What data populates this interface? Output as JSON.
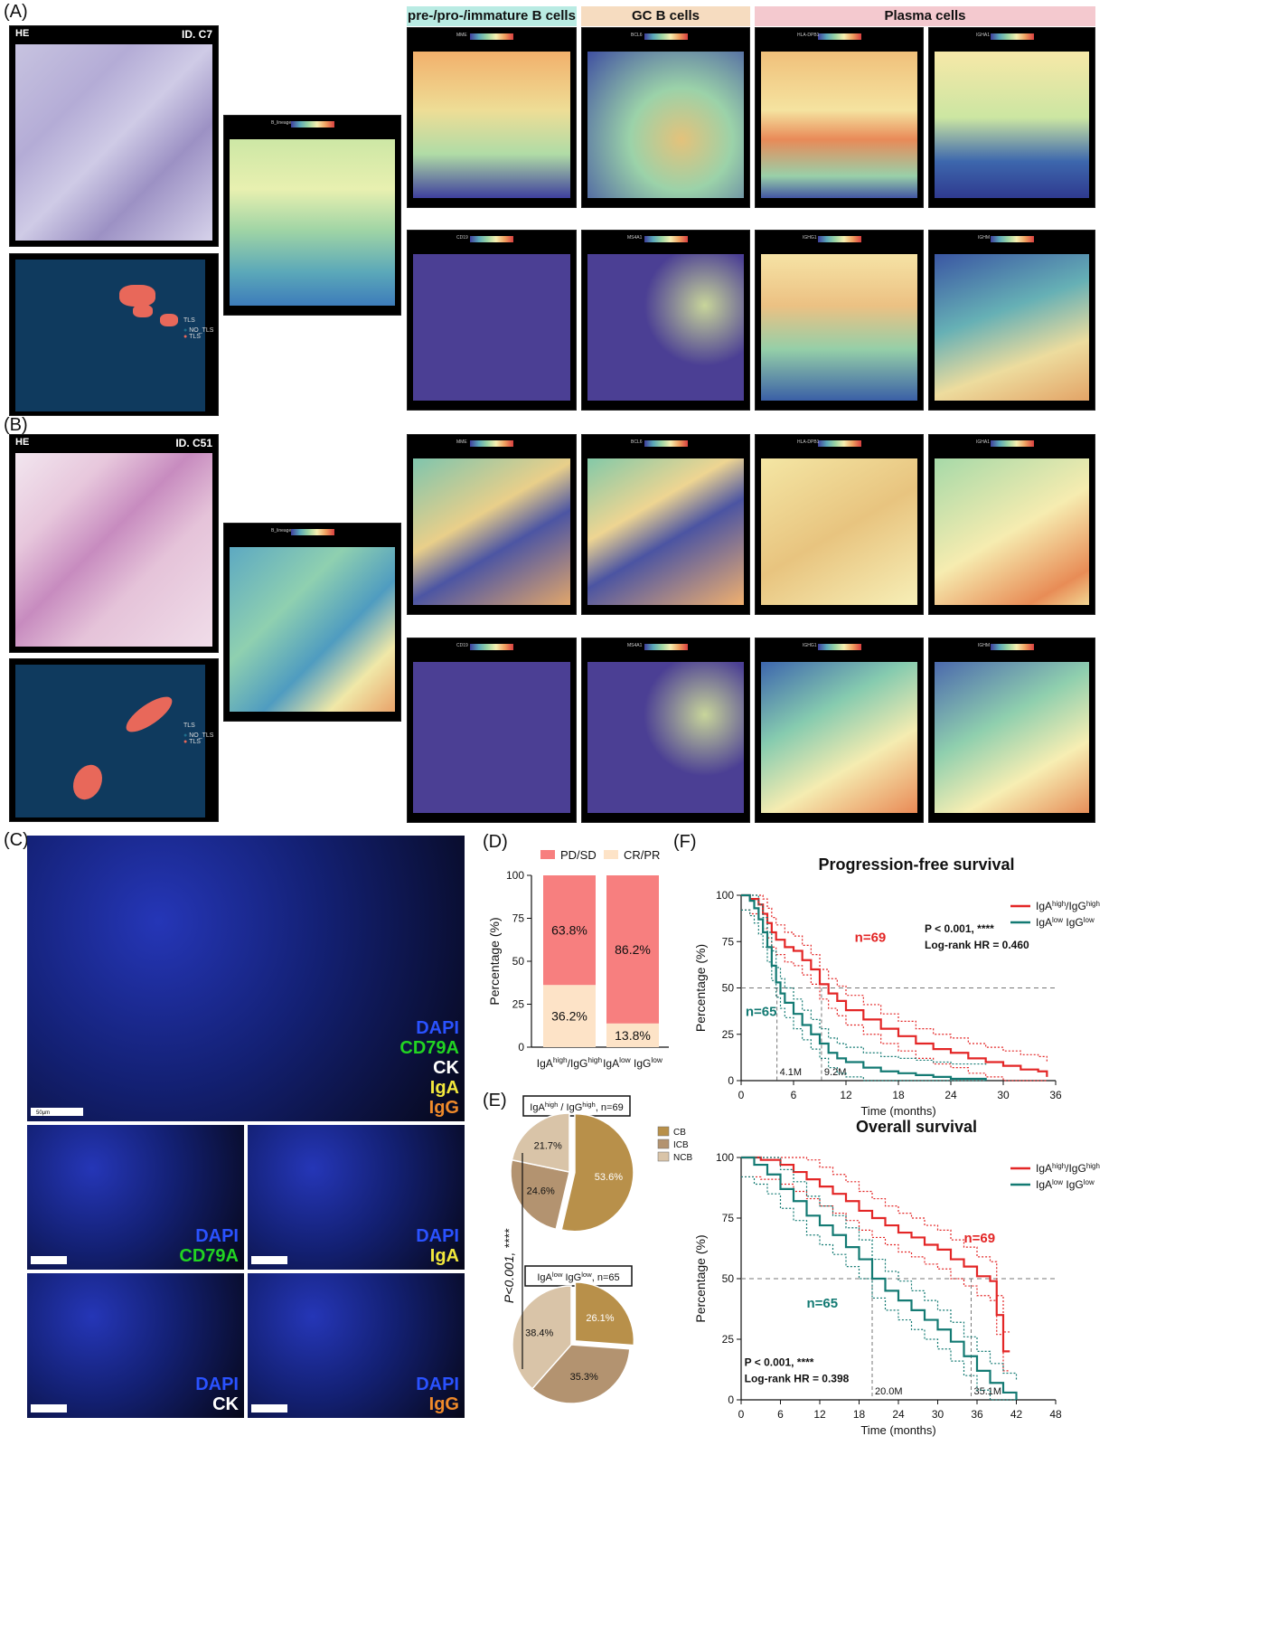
{
  "panels": {
    "A": "(A)",
    "B": "(B)",
    "C": "(C)",
    "D": "(D)",
    "E": "(E)",
    "F": "(F)"
  },
  "A": {
    "he_tag": "HE",
    "sample_id": "ID. C7",
    "tls_legend": {
      "title": "TLS",
      "items": [
        "NO_TLS",
        "TLS"
      ]
    },
    "blineage_gene": "B_lineage",
    "headers": [
      "pre-/pro-/immature B cells",
      "GC B cells",
      "Plasma cells"
    ],
    "header_colors": [
      "#b9ebe3",
      "#f6dcc0",
      "#f4c9cf"
    ],
    "genes_row1": [
      "MME",
      "BCL6",
      "HLA-DPB1",
      "IGHA1"
    ],
    "genes_row2": [
      "CD19",
      "MS4A1",
      "IGHG1",
      "IGHM"
    ]
  },
  "B": {
    "he_tag": "HE",
    "sample_id": "ID. C51",
    "tls_legend": {
      "title": "TLS",
      "items": [
        "NO_TLS",
        "TLS"
      ]
    },
    "blineage_gene": "B_lineage",
    "genes_row1": [
      "MME",
      "BCL6",
      "HLA-DPB1",
      "IGHA1"
    ],
    "genes_row2": [
      "CD19",
      "MS4A1",
      "IGHG1",
      "IGHM"
    ]
  },
  "C": {
    "main_labels": [
      {
        "text": "DAPI",
        "color": "#2a52ff"
      },
      {
        "text": "CD79A",
        "color": "#22d422"
      },
      {
        "text": "CK",
        "color": "#ffffff"
      },
      {
        "text": "IgA",
        "color": "#f2e83c"
      },
      {
        "text": "IgG",
        "color": "#f08a2a"
      }
    ],
    "sub": [
      {
        "l1": "DAPI",
        "l2": "CD79A",
        "c2": "#22d422"
      },
      {
        "l1": "DAPI",
        "l2": "IgA",
        "c2": "#f2e83c"
      },
      {
        "l1": "DAPI",
        "l2": "CK",
        "c2": "#ffffff"
      },
      {
        "l1": "DAPI",
        "l2": "IgG",
        "c2": "#f08a2a"
      }
    ],
    "scale_text": "50μm"
  },
  "chart_data": [
    {
      "id": "D",
      "type": "bar",
      "stacked": true,
      "categories": [
        {
          "main": "IgA",
          "sup": "high",
          "mid": "/IgG",
          "sup2": "high"
        },
        {
          "main": "IgA",
          "sup": "low",
          "mid": " IgG",
          "sup2": "low"
        }
      ],
      "series": [
        {
          "name": "CR/PR",
          "color": "#fde3c7",
          "values": [
            36.2,
            13.8
          ]
        },
        {
          "name": "PD/SD",
          "color": "#f77f7f",
          "values": [
            63.8,
            86.2
          ]
        }
      ],
      "value_labels": [
        "36.2%",
        "13.8%",
        "63.8%",
        "86.2%"
      ],
      "ylabel": "Percentage (%)",
      "ylim": [
        0,
        100
      ],
      "yticks": [
        0,
        25,
        50,
        75,
        100
      ]
    },
    {
      "id": "E",
      "type": "pie",
      "p_label": "P<0.001, ****",
      "legend": [
        {
          "name": "CB",
          "color": "#b8904a"
        },
        {
          "name": "ICB",
          "color": "#b39370"
        },
        {
          "name": "NCB",
          "color": "#d9c4a8"
        }
      ],
      "pies": [
        {
          "title": {
            "main": "IgA",
            "sup": "high",
            "mid": " / IgG",
            "sup2": "high",
            "tail": ", n=69"
          },
          "slices": [
            {
              "label": "CB",
              "value": 53.6,
              "text": "53.6%"
            },
            {
              "label": "ICB",
              "value": 24.6,
              "text": "24.6%"
            },
            {
              "label": "NCB",
              "value": 21.7,
              "text": "21.7%"
            }
          ]
        },
        {
          "title": {
            "main": "IgA",
            "sup": "low",
            "mid": " IgG",
            "sup2": "low",
            "tail": ", n=65"
          },
          "slices": [
            {
              "label": "CB",
              "value": 26.1,
              "text": "26.1%"
            },
            {
              "label": "ICB",
              "value": 35.3,
              "text": "35.3%"
            },
            {
              "label": "NCB",
              "value": 38.4,
              "text": "38.4%"
            }
          ]
        }
      ]
    },
    {
      "id": "F1",
      "type": "line",
      "title": "Progression-free survival",
      "xlabel": "Time (months)",
      "ylabel": "Percentage (%)",
      "xlim": [
        0,
        36
      ],
      "ylim": [
        0,
        100
      ],
      "xticks": [
        0,
        6,
        12,
        18,
        24,
        30,
        36
      ],
      "yticks": [
        0,
        25,
        50,
        75,
        100
      ],
      "median_labels": [
        "4.1M",
        "9.2M"
      ],
      "medians": [
        4.1,
        9.2
      ],
      "n_labels": [
        "n=69",
        "n=65"
      ],
      "stats": {
        "p": "P < 0.001, ****",
        "hr": "Log-rank HR = 0.460"
      },
      "series": [
        {
          "name": "IgA^high/IgG^high",
          "color": "#e32626",
          "n": 69,
          "x": [
            0,
            1,
            2,
            2.5,
            3,
            3.5,
            4,
            5,
            6,
            7,
            8,
            9,
            10,
            11,
            12,
            14,
            16,
            18,
            20,
            22,
            24,
            26,
            28,
            30,
            32,
            34,
            35
          ],
          "y": [
            100,
            98,
            95,
            90,
            85,
            80,
            76,
            72,
            70,
            65,
            60,
            52,
            47,
            43,
            38,
            33,
            28,
            24,
            20,
            17,
            15,
            12,
            10,
            8,
            6,
            5,
            2
          ]
        },
        {
          "name": "IgA^low IgG^low",
          "color": "#137a73",
          "n": 65,
          "x": [
            0,
            1,
            1.5,
            2,
            2.5,
            3,
            3.5,
            4,
            4.5,
            5,
            6,
            7,
            8,
            9,
            10,
            11,
            12,
            14,
            16,
            18,
            20,
            22,
            24,
            28
          ],
          "y": [
            100,
            97,
            93,
            87,
            80,
            72,
            62,
            53,
            47,
            42,
            36,
            30,
            25,
            20,
            15,
            12,
            10,
            7,
            5,
            4,
            3,
            2,
            1,
            0
          ]
        }
      ]
    },
    {
      "id": "F2",
      "type": "line",
      "title": "Overall survival",
      "xlabel": "Time (months)",
      "ylabel": "Percentage (%)",
      "xlim": [
        0,
        48
      ],
      "ylim": [
        0,
        100
      ],
      "xticks": [
        0,
        6,
        12,
        18,
        24,
        30,
        36,
        42,
        48
      ],
      "yticks": [
        0,
        25,
        50,
        75,
        100
      ],
      "median_labels": [
        "20.0M",
        "35.1M"
      ],
      "medians": [
        20.0,
        35.1
      ],
      "n_labels": [
        "n=69",
        "n=65"
      ],
      "stats": {
        "p": "P < 0.001, ****",
        "hr": "Log-rank HR = 0.398"
      },
      "series": [
        {
          "name": "IgA^high/IgG^high",
          "color": "#e32626",
          "n": 69,
          "x": [
            0,
            3,
            6,
            8,
            10,
            12,
            14,
            16,
            18,
            20,
            22,
            24,
            26,
            28,
            30,
            32,
            34,
            36,
            38,
            39,
            40,
            41
          ],
          "y": [
            100,
            99,
            97,
            94,
            91,
            88,
            85,
            82,
            78,
            75,
            72,
            69,
            67,
            64,
            62,
            58,
            55,
            51,
            49,
            35,
            20,
            20
          ]
        },
        {
          "name": "IgA^low IgG^low",
          "color": "#137a73",
          "n": 65,
          "x": [
            0,
            2,
            4,
            6,
            8,
            10,
            12,
            14,
            16,
            18,
            20,
            22,
            24,
            26,
            28,
            30,
            32,
            34,
            36,
            38,
            40,
            42
          ],
          "y": [
            100,
            97,
            93,
            87,
            82,
            76,
            72,
            68,
            63,
            58,
            50,
            45,
            41,
            37,
            33,
            29,
            24,
            18,
            12,
            7,
            3,
            0
          ]
        }
      ]
    }
  ]
}
